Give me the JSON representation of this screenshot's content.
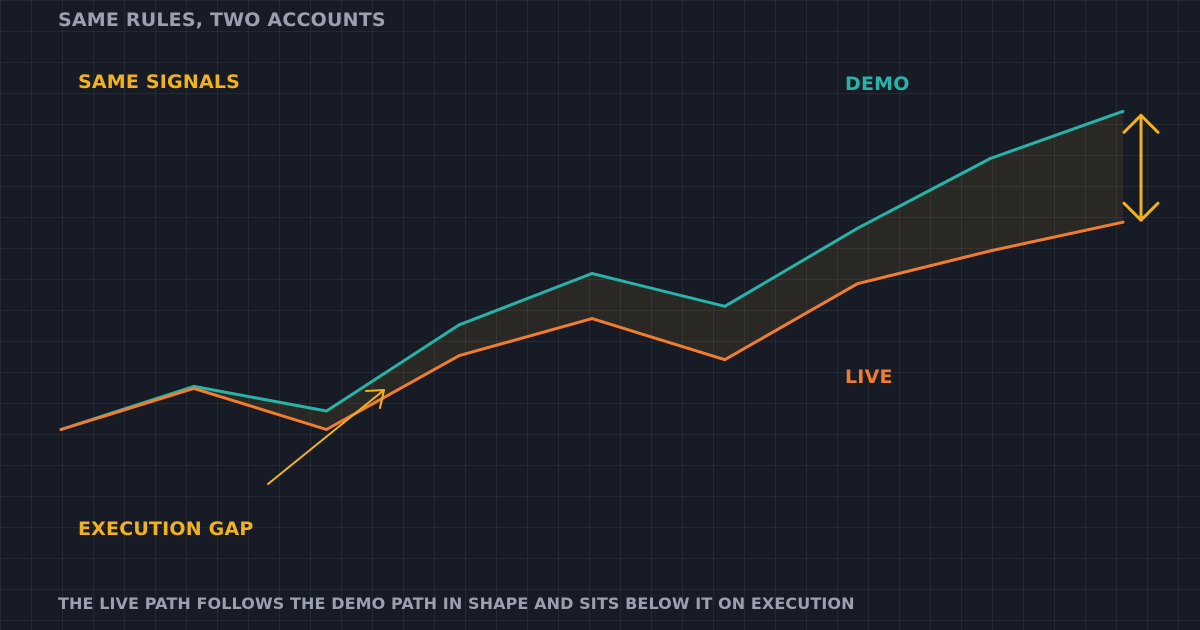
{
  "title": "SAME RULES, TWO ACCOUNTS",
  "annotations": {
    "same_signals": "SAME SIGNALS",
    "execution_gap": "EXECUTION GAP"
  },
  "caption": "THE LIVE PATH FOLLOWS THE DEMO PATH IN SHAPE AND SITS BELOW IT ON EXECUTION",
  "colors": {
    "background": "#161b26",
    "demo": "#27b3a6",
    "live": "#f07d2e",
    "accent": "#f2b21b",
    "muted_text": "#9aa0ad"
  },
  "chart_data": {
    "type": "line",
    "title": "SAME RULES, TWO ACCOUNTS",
    "x": [
      0,
      1,
      2,
      3,
      4,
      5,
      6,
      7,
      8
    ],
    "series": [
      {
        "name": "DEMO",
        "values": [
          10,
          31,
          19,
          61,
          86,
          70,
          108,
          142,
          165
        ]
      },
      {
        "name": "LIVE",
        "values": [
          10,
          30,
          10,
          46,
          64,
          44,
          81,
          97,
          111
        ]
      }
    ],
    "ylim": [
      0,
      190
    ],
    "grid": true,
    "legend": "inline labels at right",
    "gap_fill": "shaded area between DEMO and LIVE",
    "gap_marker": "double-headed vertical arrow at final point"
  }
}
